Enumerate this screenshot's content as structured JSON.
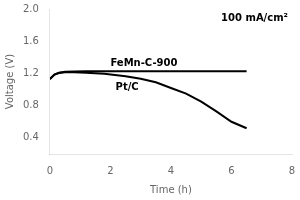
{
  "chart_data": {
    "type": "line",
    "x_label": "Time (h)",
    "y_label": "Voltage (V)",
    "annotations": [
      "100 mA/cm²"
    ],
    "xlim": [
      0,
      8
    ],
    "ylim": [
      0.2,
      2.0
    ],
    "xticks": [
      0,
      2,
      4,
      6,
      8
    ],
    "yticks": [
      0.4,
      0.8,
      1.2,
      1.6,
      {
        "value": 2.0,
        "label": "2.0"
      }
    ],
    "grid": false,
    "series": [
      {
        "name": "FeMn-C-900",
        "color": "#000000",
        "x": [
          0.0,
          0.15,
          0.3,
          0.5,
          0.8,
          1.2,
          2.0,
          3.0,
          4.0,
          5.0,
          6.0,
          6.5
        ],
        "values": [
          1.13,
          1.185,
          1.21,
          1.22,
          1.225,
          1.228,
          1.228,
          1.228,
          1.228,
          1.228,
          1.228,
          1.228
        ]
      },
      {
        "name": "Pt/C",
        "color": "#000000",
        "x": [
          0.0,
          0.15,
          0.3,
          0.5,
          0.8,
          1.2,
          1.8,
          2.5,
          3.0,
          3.5,
          4.0,
          4.5,
          5.0,
          5.5,
          6.0,
          6.5
        ],
        "values": [
          1.13,
          1.185,
          1.205,
          1.215,
          1.215,
          1.21,
          1.195,
          1.165,
          1.135,
          1.09,
          1.02,
          0.95,
          0.85,
          0.73,
          0.6,
          0.52
        ]
      }
    ]
  }
}
